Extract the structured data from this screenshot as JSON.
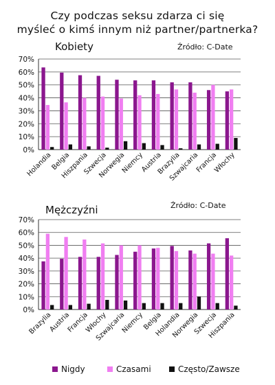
{
  "title_line1": "Czy podczas seksu zdarza ci się",
  "title_line2": "myśleć o kimś innym niż partner/partnerka?",
  "legend": [
    {
      "name": "Nigdy",
      "color": "#8B178E"
    },
    {
      "name": "Czasami",
      "color": "#F07EF1"
    },
    {
      "name": "Często/Zawsze",
      "color": "#111111"
    }
  ],
  "chart_data": [
    {
      "type": "bar",
      "title": "Kobiety",
      "source": "Źródło: C-Date",
      "categories": [
        "Holandia",
        "Belgia",
        "Hiszpania",
        "Szwecja",
        "Norwegia",
        "Niemcy",
        "Austria",
        "Brazylia",
        "Szwajcaria",
        "Francja",
        "Włochy"
      ],
      "series": [
        {
          "name": "Nigdy",
          "color": "#8B178E",
          "values": [
            63.5,
            59.5,
            57.5,
            57,
            54,
            53.5,
            53.5,
            52,
            52,
            46,
            45
          ]
        },
        {
          "name": "Czasami",
          "color": "#F07EF1",
          "values": [
            34.5,
            36.5,
            40,
            41,
            39.5,
            42,
            43,
            46.5,
            44,
            50,
            46.5
          ]
        },
        {
          "name": "Często/Zawsze",
          "color": "#111111",
          "values": [
            2,
            4,
            2.5,
            1.5,
            6.5,
            5,
            3.5,
            1,
            4,
            4.5,
            9
          ]
        }
      ],
      "yticks": [
        "0%",
        "10%",
        "20%",
        "30%",
        "40%",
        "50%",
        "60%",
        "70%"
      ],
      "ylim": [
        0,
        70
      ]
    },
    {
      "type": "bar",
      "title": "Mężczyźni",
      "source": "Źródło: C-Date",
      "categories": [
        "Brazylia",
        "Austria",
        "Francja",
        "Włochy",
        "Szwajcaria",
        "Niemcy",
        "Belgia",
        "Holandia",
        "Norwegia",
        "Szwecja",
        "Hiszpania"
      ],
      "series": [
        {
          "name": "Nigdy",
          "color": "#8B178E",
          "values": [
            37.5,
            39.5,
            41,
            41,
            42.5,
            45,
            47.5,
            49.5,
            46,
            51.5,
            55.5
          ]
        },
        {
          "name": "Czasami",
          "color": "#F07EF1",
          "values": [
            59,
            56.5,
            54.5,
            51.5,
            50,
            50,
            48,
            45.5,
            43.5,
            43.5,
            42
          ]
        },
        {
          "name": "Często/Zawsze",
          "color": "#111111",
          "values": [
            3.5,
            3.5,
            4.5,
            7.5,
            7,
            5,
            5,
            5,
            10,
            5,
            3
          ]
        }
      ],
      "yticks": [
        "0%",
        "10%",
        "20%",
        "30%",
        "40%",
        "50%",
        "60%",
        "70%"
      ],
      "ylim": [
        0,
        70
      ]
    }
  ]
}
